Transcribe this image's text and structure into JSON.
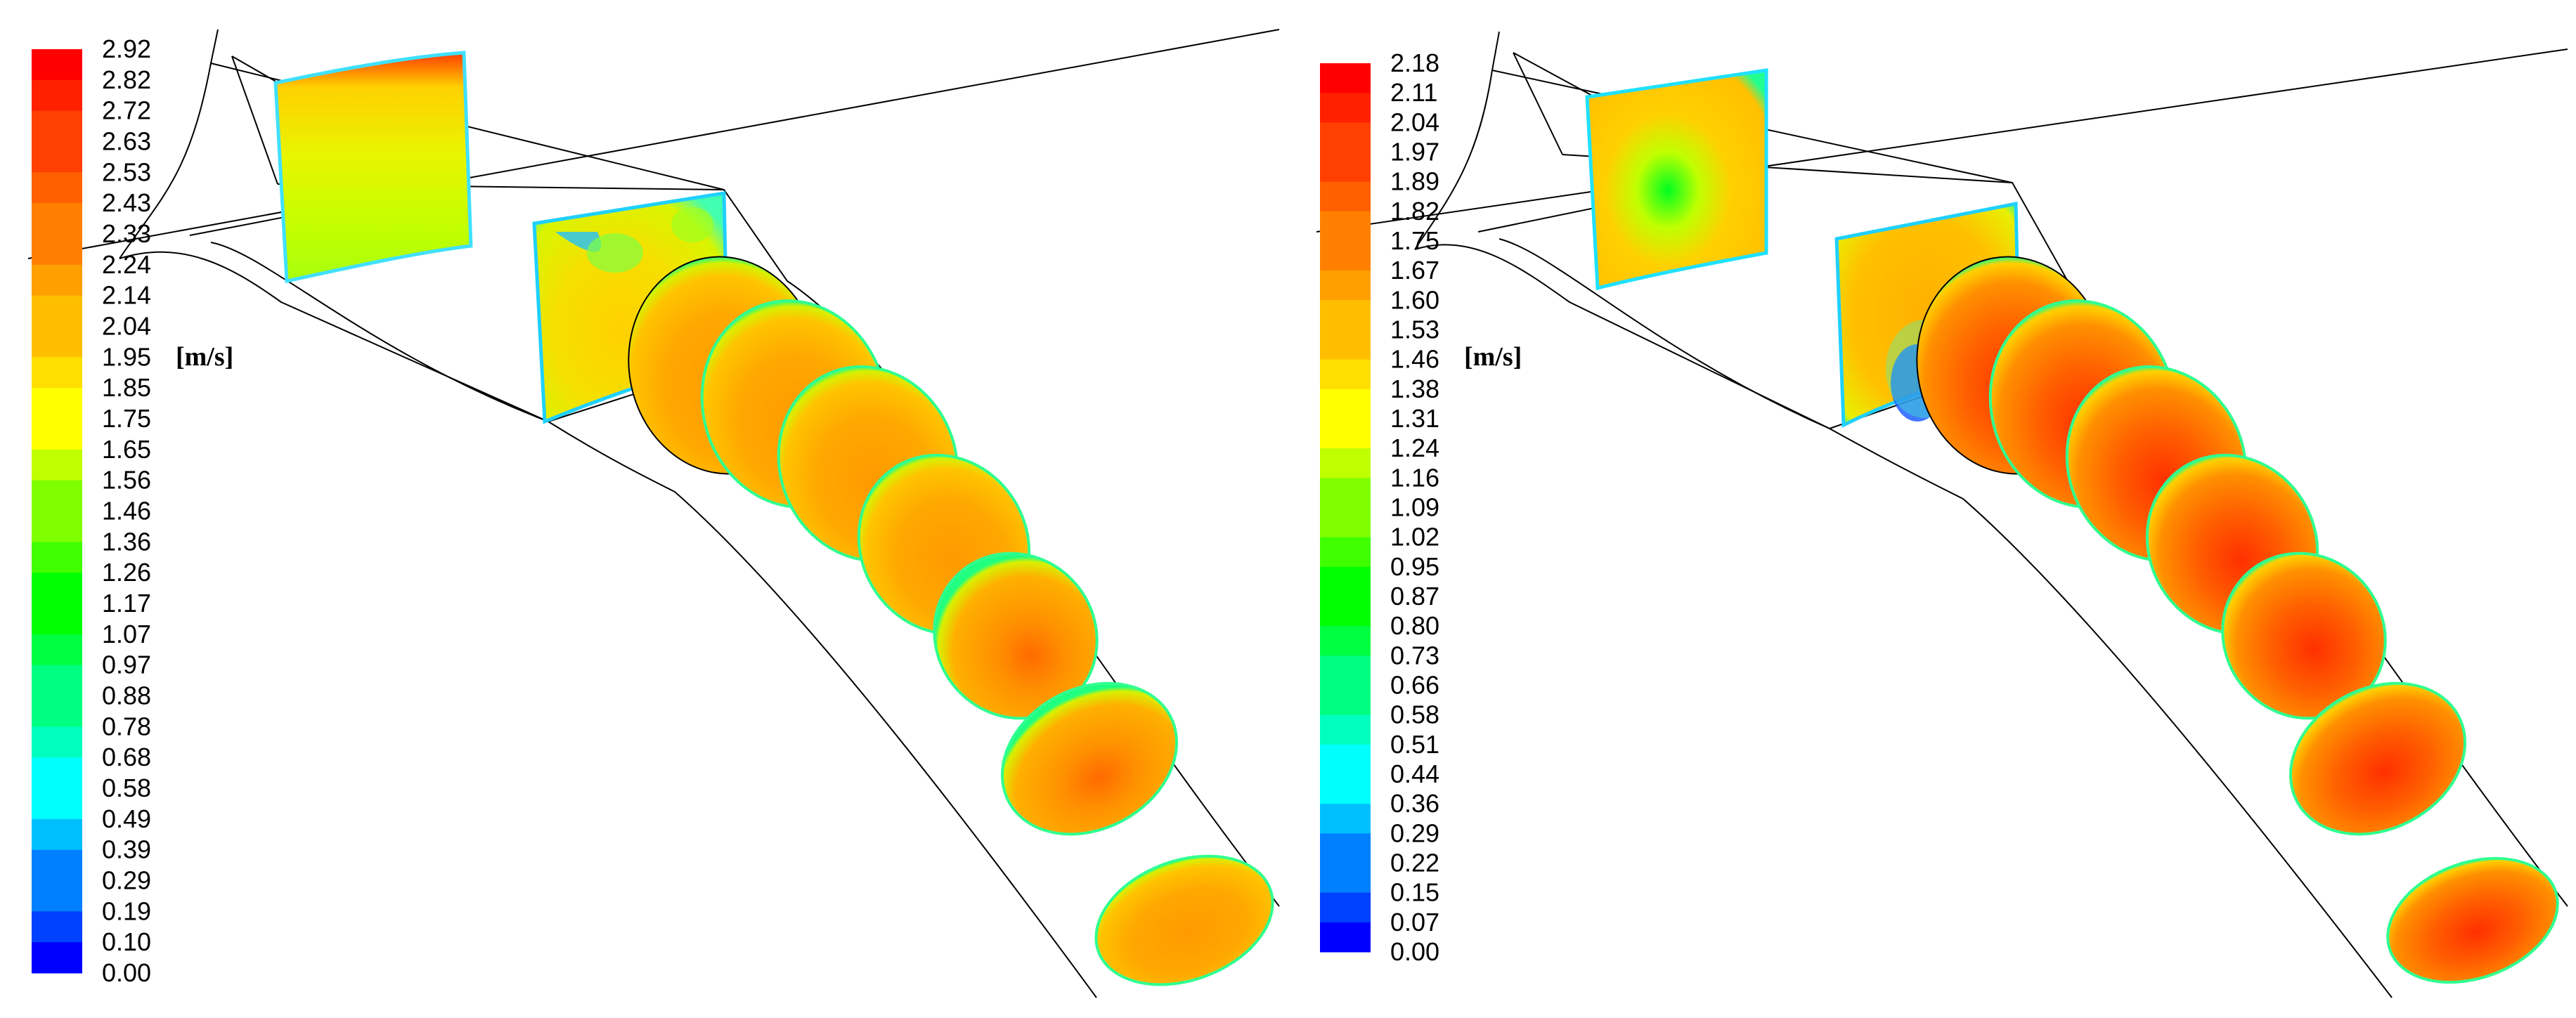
{
  "panels": [
    {
      "id": "left",
      "unit_label": "[m/s]",
      "colorbar": {
        "min": 0.0,
        "max": 2.92,
        "ticks": [
          "2.92",
          "2.82",
          "2.72",
          "2.63",
          "2.53",
          "2.43",
          "2.33",
          "2.24",
          "2.14",
          "2.04",
          "1.95",
          "1.85",
          "1.75",
          "1.65",
          "1.56",
          "1.46",
          "1.36",
          "1.26",
          "1.17",
          "1.07",
          "0.97",
          "0.88",
          "0.78",
          "0.68",
          "0.58",
          "0.49",
          "0.39",
          "0.29",
          "0.19",
          "0.10",
          "0.00"
        ]
      }
    },
    {
      "id": "right",
      "unit_label": "[m/s]",
      "colorbar": {
        "min": 0.0,
        "max": 2.18,
        "ticks": [
          "2.18",
          "2.11",
          "2.04",
          "1.97",
          "1.89",
          "1.82",
          "1.75",
          "1.67",
          "1.60",
          "1.53",
          "1.46",
          "1.38",
          "1.31",
          "1.24",
          "1.16",
          "1.09",
          "1.02",
          "0.95",
          "0.87",
          "0.80",
          "0.73",
          "0.66",
          "0.58",
          "0.51",
          "0.44",
          "0.36",
          "0.29",
          "0.22",
          "0.15",
          "0.07",
          "0.00"
        ]
      }
    }
  ],
  "colors": {
    "scale": [
      "#0000ff",
      "#0040ff",
      "#0080ff",
      "#00bfff",
      "#00ffff",
      "#00ffbf",
      "#00ff80",
      "#00ff40",
      "#00ff00",
      "#40ff00",
      "#80ff00",
      "#bfff00",
      "#ffff00",
      "#ffdf00",
      "#ffbf00",
      "#ff9f00",
      "#ff8000",
      "#ff6000",
      "#ff4000",
      "#ff2000",
      "#ff0000"
    ],
    "outline": "#000000"
  }
}
